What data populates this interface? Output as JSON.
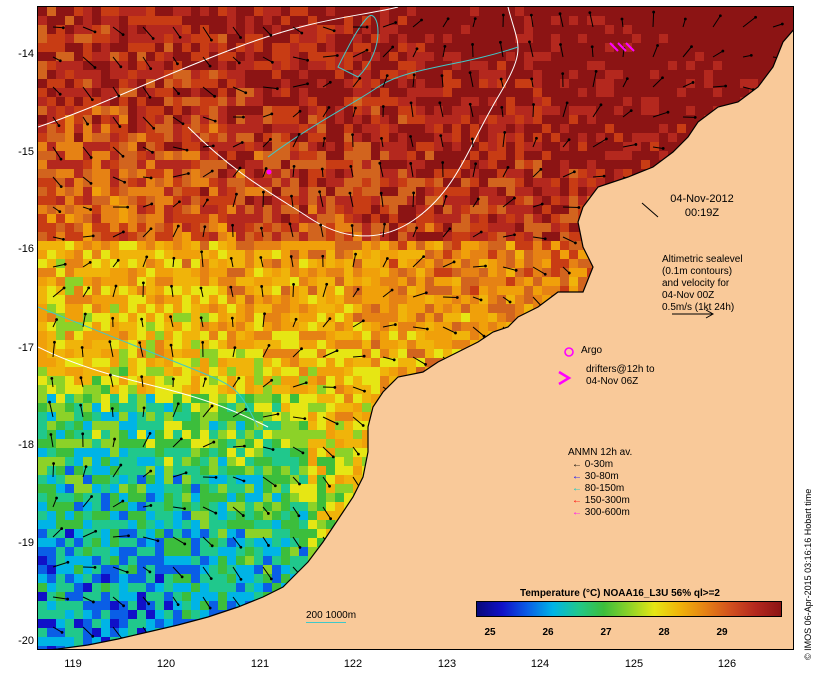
{
  "map": {
    "date": "04-Nov-2012",
    "time": "00:19Z",
    "altimetry_note": [
      "Altimetric sealevel",
      "(0.1m contours)",
      "and velocity for",
      "04-Nov 00Z",
      "0.5m/s (1kt 24h)"
    ],
    "argo_label": "Argo",
    "drifters_note": [
      "drifters@12h to",
      "04-Nov 06Z"
    ],
    "isobath_label": "200  1000m",
    "credit": "© IMOS 06-Apr-2015 03:16:16 Hobart time",
    "colorbar": {
      "title": "Temperature (°C) NOAA16_L3U 56% ql>=2",
      "ticks": [
        "25",
        "26",
        "27",
        "28",
        "29"
      ],
      "colors": [
        "#08087a",
        "#1010c8",
        "#0a5ee6",
        "#00b4e6",
        "#20c88c",
        "#3cbe3c",
        "#8cd228",
        "#e6e614",
        "#f0b40a",
        "#e68214",
        "#d2501e",
        "#b4281e",
        "#8c1414"
      ]
    },
    "anmn": {
      "title": "ANMN 12h av.",
      "items": [
        {
          "label": "0-30m",
          "color": "#000000"
        },
        {
          "label": "30-80m",
          "color": "#0000ff"
        },
        {
          "label": "80-150m",
          "color": "#00c8c8"
        },
        {
          "label": "150-300m",
          "color": "#ff0000"
        },
        {
          "label": "300-600m",
          "color": "#ff00ff"
        }
      ]
    },
    "x_ticks": [
      "119",
      "120",
      "121",
      "122",
      "123",
      "124",
      "125",
      "126"
    ],
    "y_ticks": [
      "-14",
      "-15",
      "-16",
      "-17",
      "-18",
      "-19",
      "-20"
    ],
    "colors": {
      "land": "#f9c999",
      "argo": "#ff00ff",
      "drifter": "#ff00ff",
      "isobath": "#40c8c8"
    }
  }
}
